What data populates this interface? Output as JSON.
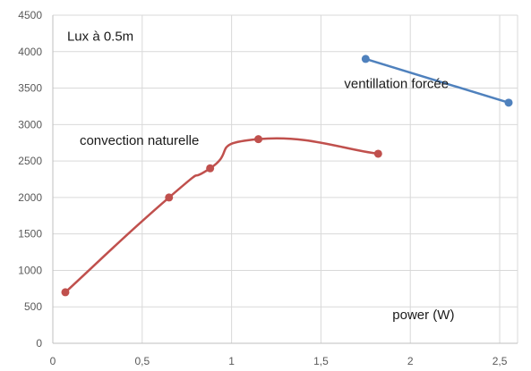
{
  "chart_data": {
    "type": "line",
    "title": "",
    "xlabel": "",
    "ylabel": "",
    "xlim": [
      0,
      2.6
    ],
    "ylim": [
      0,
      4500
    ],
    "xticks": [
      0,
      0.5,
      1,
      1.5,
      2,
      2.5
    ],
    "xtick_labels": [
      "0",
      "0,5",
      "1",
      "1,5",
      "2",
      "2,5"
    ],
    "yticks": [
      0,
      500,
      1000,
      1500,
      2000,
      2500,
      3000,
      3500,
      4000,
      4500
    ],
    "ytick_labels": [
      "0",
      "500",
      "1000",
      "1500",
      "2000",
      "2500",
      "3000",
      "3500",
      "4000",
      "4500"
    ],
    "grid": "vertical and horizontal",
    "legend": "none",
    "series": [
      {
        "name": "convection naturelle",
        "color": "#c0504d",
        "smooth": true,
        "points": [
          {
            "x": 0.07,
            "y": 700
          },
          {
            "x": 0.65,
            "y": 2000
          },
          {
            "x": 0.88,
            "y": 2400
          },
          {
            "x": 1.15,
            "y": 2800
          },
          {
            "x": 1.82,
            "y": 2600
          }
        ]
      },
      {
        "name": "ventillation forcée",
        "color": "#4f81bd",
        "smooth": false,
        "points": [
          {
            "x": 1.75,
            "y": 3900
          },
          {
            "x": 2.55,
            "y": 3300
          }
        ]
      }
    ],
    "annotations": [
      {
        "text": "Lux à 0.5m",
        "x": 0.08,
        "y": 4150
      },
      {
        "text": "convection naturelle",
        "x": 0.15,
        "y": 2720
      },
      {
        "text": "ventillation forcée",
        "x": 1.63,
        "y": 3500
      },
      {
        "text": "power (W)",
        "x": 1.9,
        "y": 330
      }
    ]
  }
}
